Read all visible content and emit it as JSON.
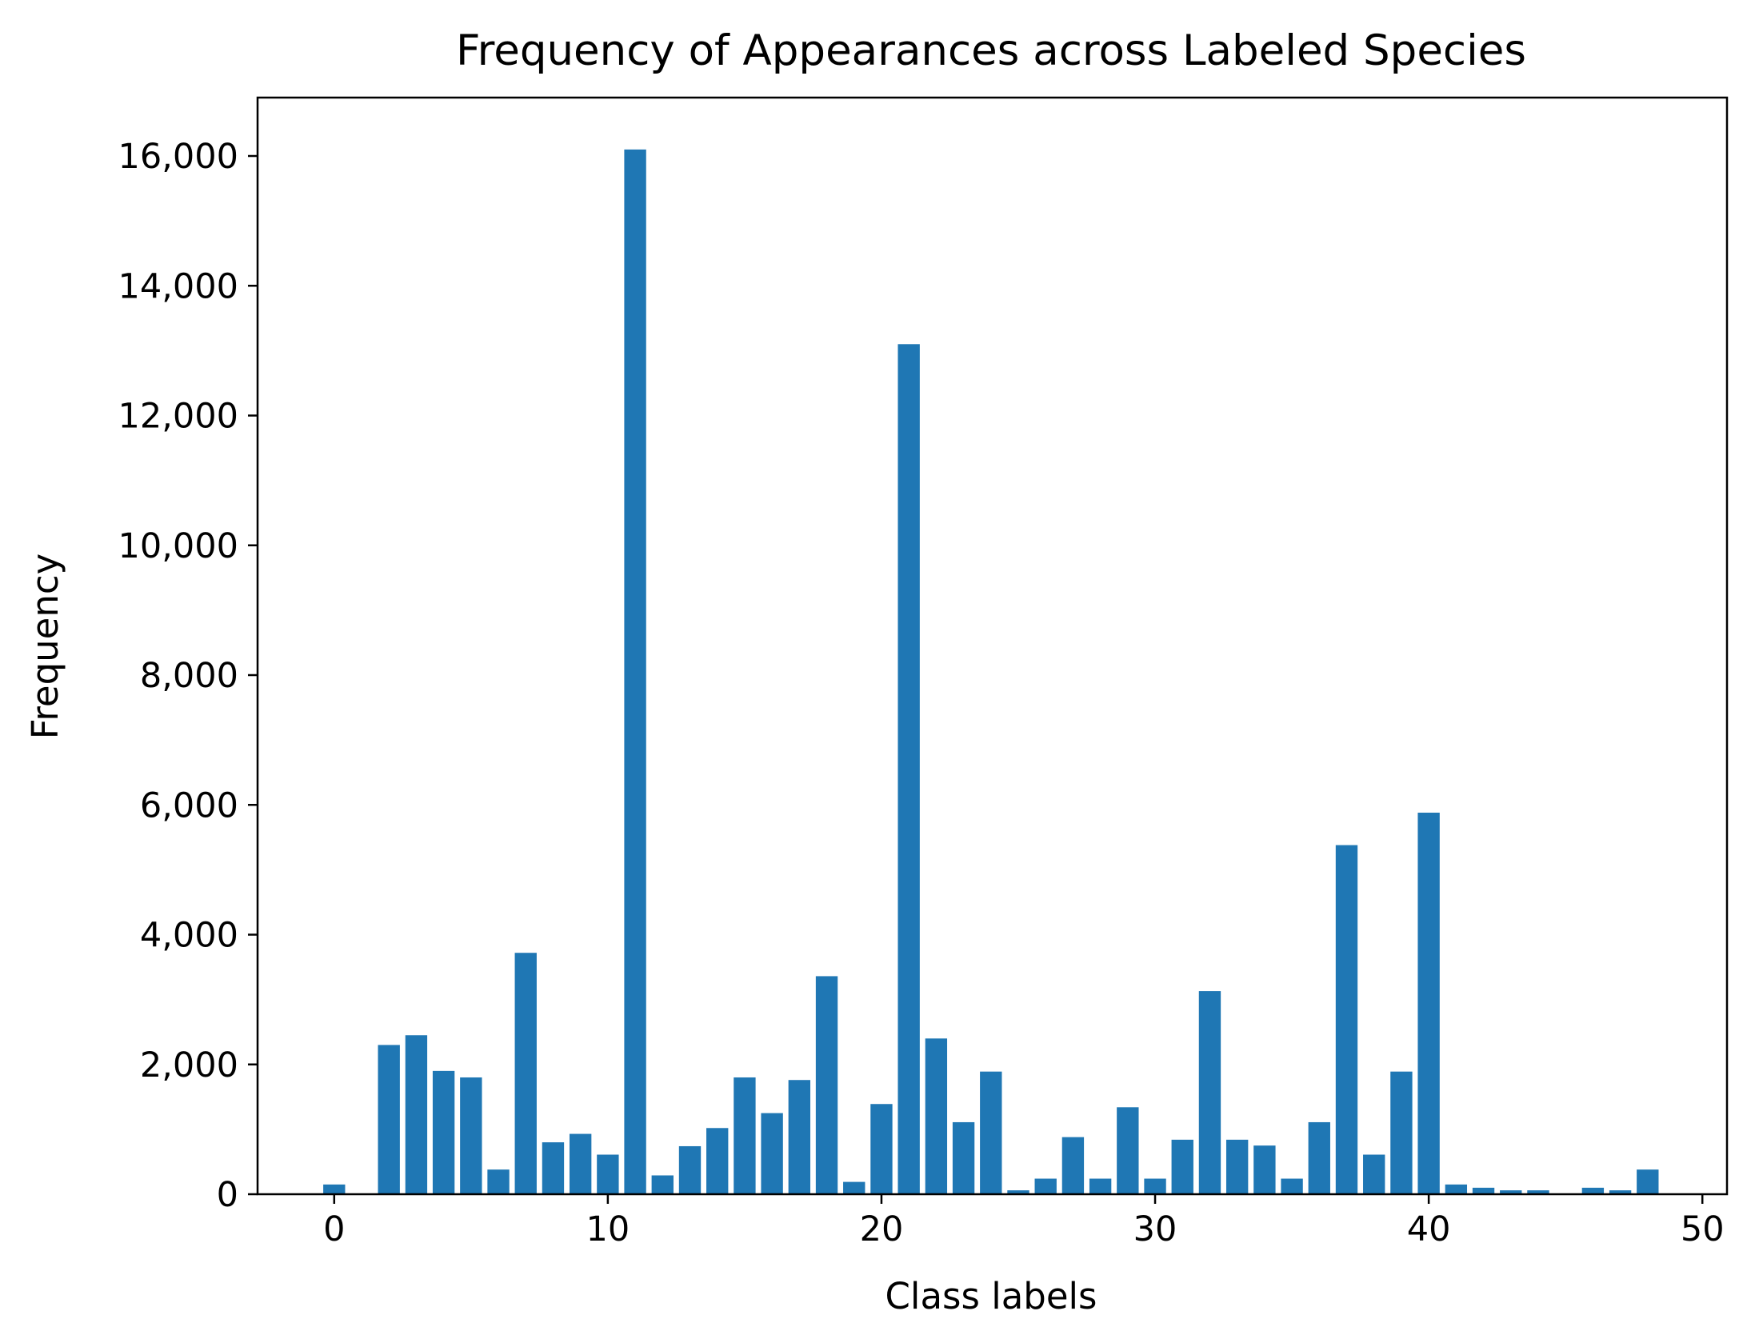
{
  "chart_data": {
    "type": "bar",
    "title": "Frequency of Appearances across Labeled Species",
    "xlabel": "Class labels",
    "ylabel": "Frequency",
    "xlim": [
      -2.8,
      50.9
    ],
    "ylim": [
      0,
      16900
    ],
    "xticks": [
      0,
      10,
      20,
      30,
      40,
      50
    ],
    "yticks": [
      0,
      2000,
      4000,
      6000,
      8000,
      10000,
      12000,
      14000,
      16000
    ],
    "ytick_labels": [
      "0",
      "2,000",
      "4,000",
      "6,000",
      "8,000",
      "10,000",
      "12,000",
      "14,000",
      "16,000"
    ],
    "xtick_labels": [
      "0",
      "10",
      "20",
      "30",
      "40",
      "50"
    ],
    "grid": false,
    "bar_color": "#1f77b4",
    "x": [
      0,
      1,
      2,
      3,
      4,
      5,
      6,
      7,
      8,
      9,
      10,
      11,
      12,
      13,
      14,
      15,
      16,
      17,
      18,
      19,
      20,
      21,
      22,
      23,
      24,
      25,
      26,
      27,
      28,
      29,
      30,
      31,
      32,
      33,
      34,
      35,
      36,
      37,
      38,
      39,
      40,
      41,
      42,
      43,
      44,
      45,
      46,
      47,
      48
    ],
    "values": [
      150,
      0,
      2300,
      2450,
      1900,
      1800,
      380,
      3720,
      800,
      930,
      610,
      16100,
      290,
      740,
      1020,
      1800,
      1250,
      1760,
      3360,
      190,
      1390,
      13100,
      2400,
      1110,
      1890,
      60,
      240,
      880,
      240,
      1340,
      240,
      840,
      3130,
      840,
      750,
      240,
      1110,
      5380,
      610,
      1890,
      5880,
      150,
      100,
      60,
      60,
      0,
      100,
      60,
      380
    ]
  }
}
